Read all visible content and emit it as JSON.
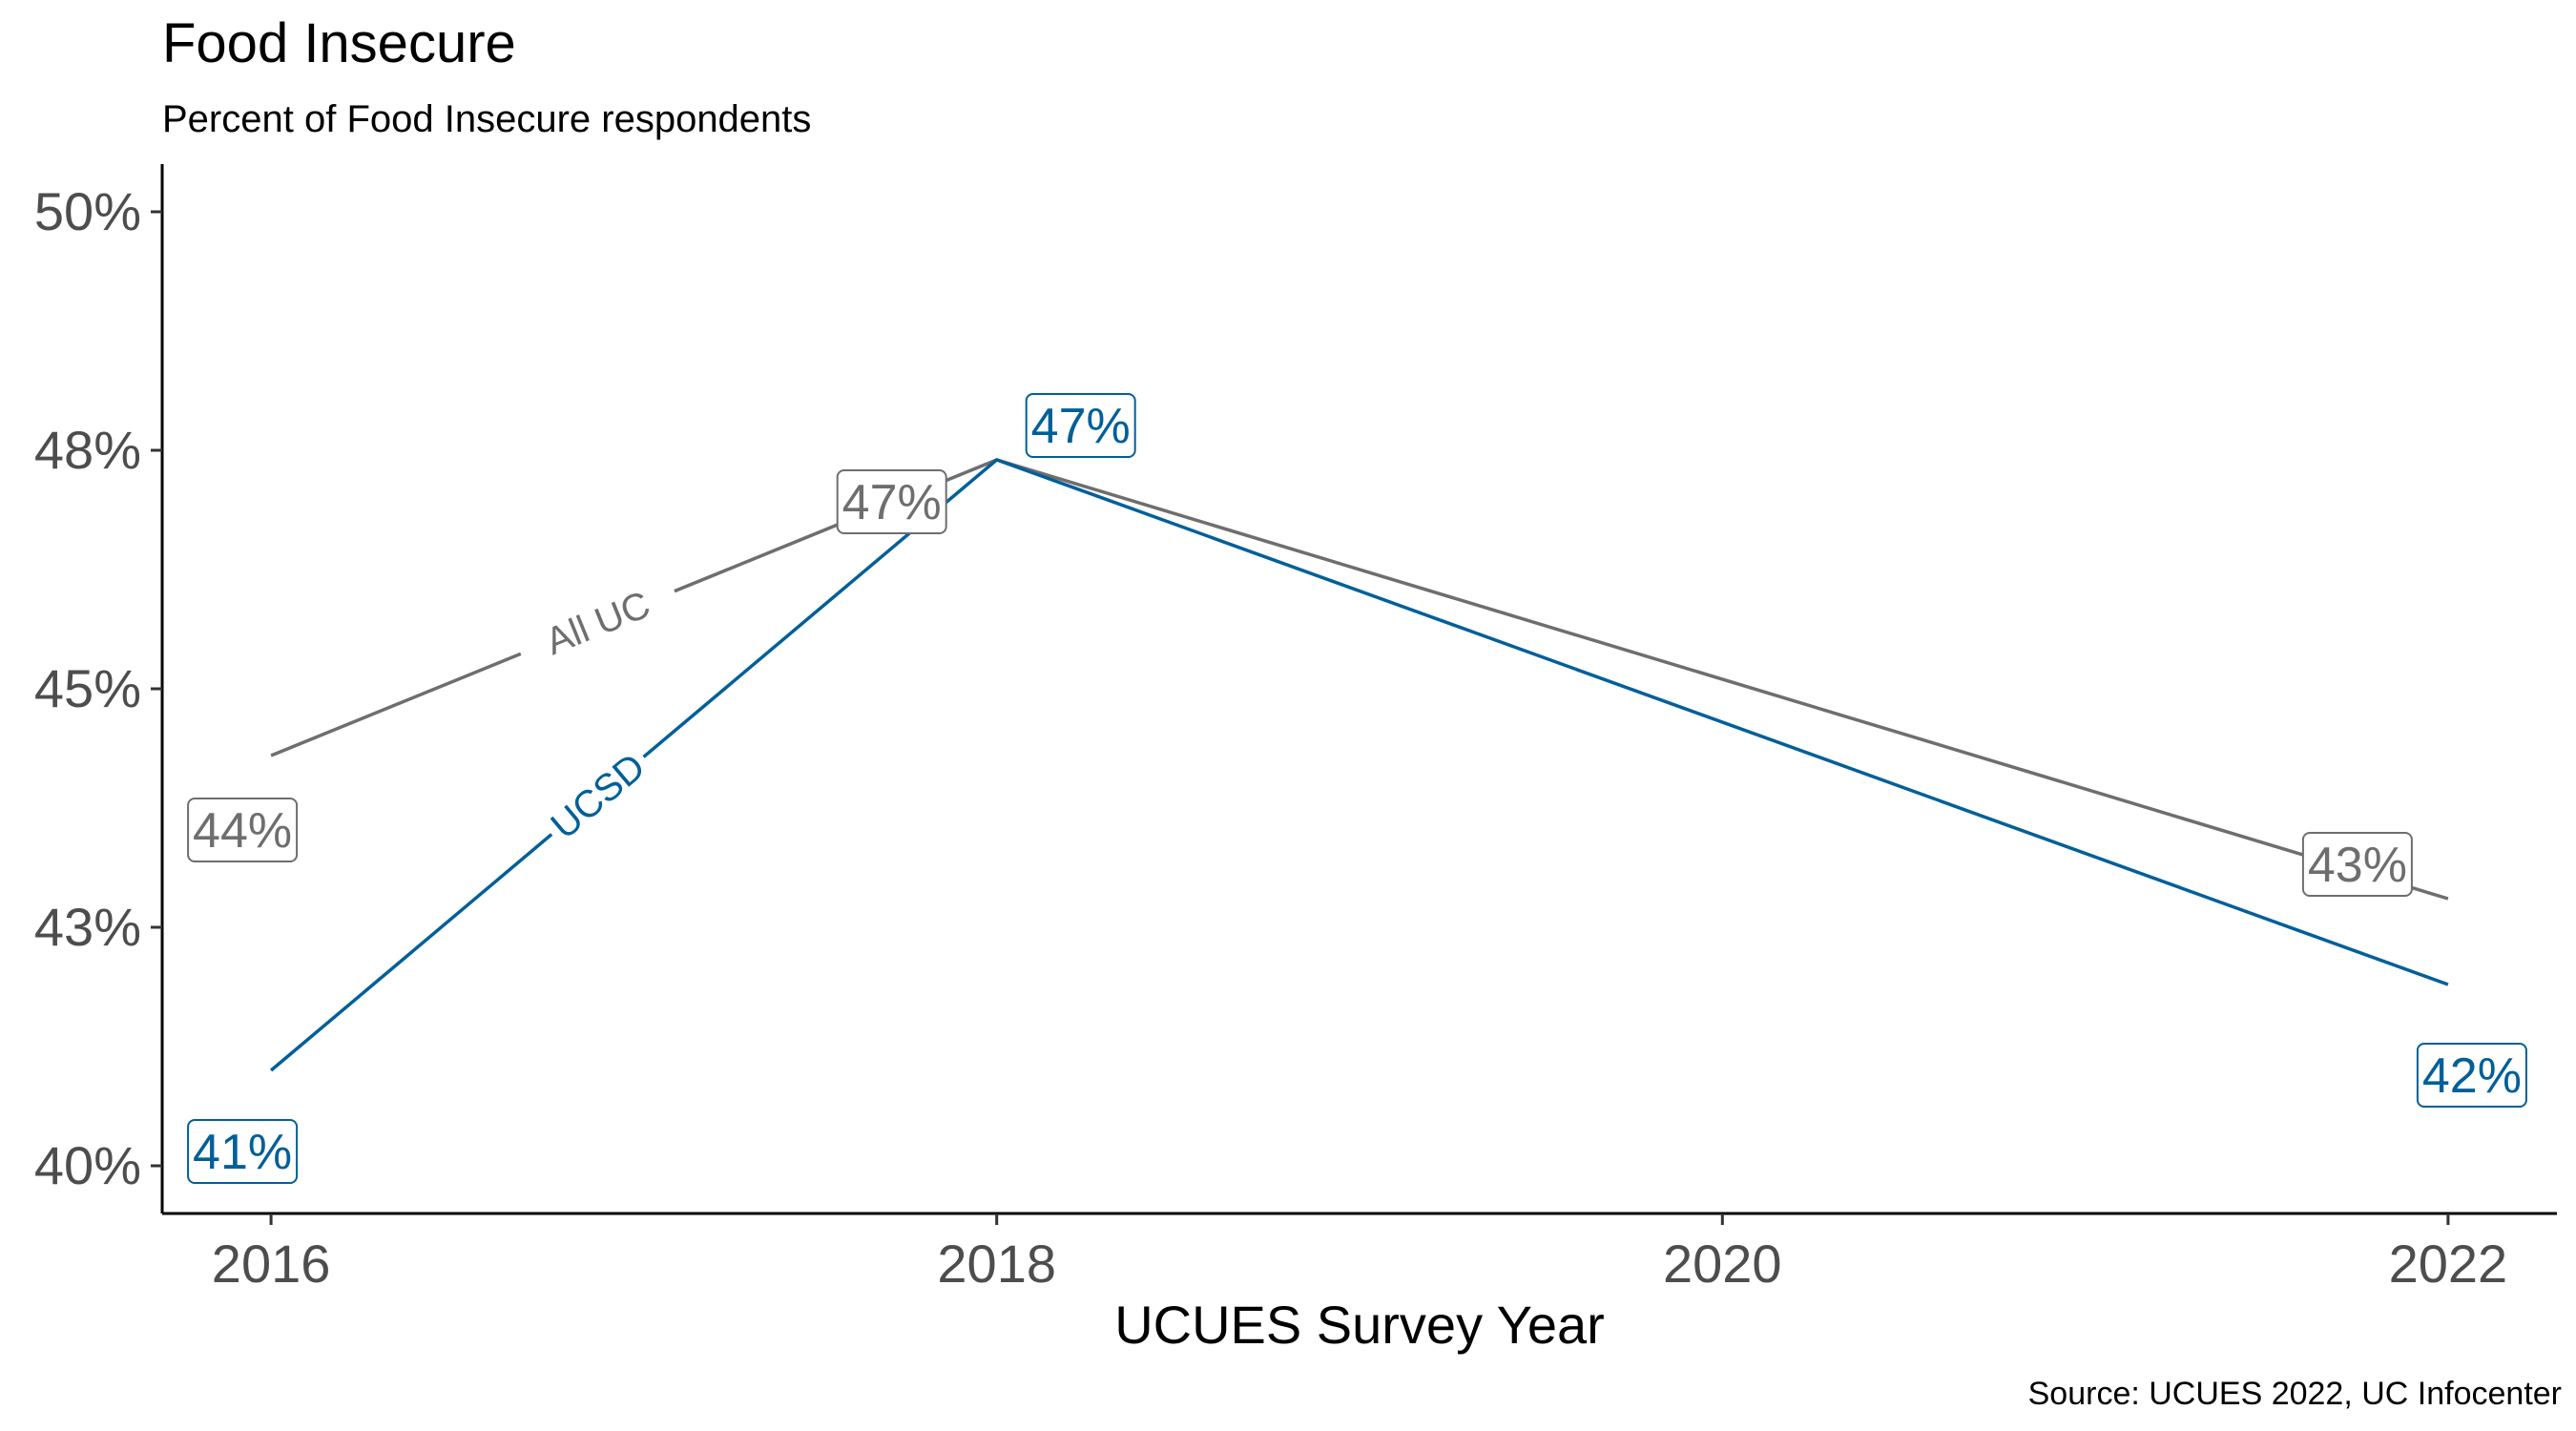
{
  "chart_data": {
    "type": "line",
    "title": "Food Insecure",
    "subtitle": "Percent of Food Insecure respondents",
    "xlabel": "UCUES Survey Year",
    "ylabel": "",
    "caption": "Source: UCUES 2022, UC Infocenter",
    "x": [
      2016,
      2018,
      2020,
      2022
    ],
    "x_tick_labels": [
      "2016",
      "2018",
      "2020",
      "2022"
    ],
    "xlim": [
      2015.7,
      2022.3
    ],
    "ylim": [
      39.5,
      50.5
    ],
    "y_ticks": [
      40,
      42.5,
      45,
      47.5,
      50
    ],
    "y_tick_labels": [
      "40%",
      "43%",
      "45%",
      "48%",
      "50%"
    ],
    "grid": false,
    "series": [
      {
        "name": "All UC",
        "color": "#6e6e6e",
        "x": [
          2016,
          2018,
          2022
        ],
        "values": [
          44.3,
          47.4,
          42.8
        ],
        "point_labels": [
          "44%",
          "47%",
          "43%"
        ]
      },
      {
        "name": "UCSD",
        "color": "#005f99",
        "x": [
          2016,
          2018,
          2022
        ],
        "values": [
          41.0,
          47.4,
          41.9
        ],
        "point_labels": [
          "41%",
          "47%",
          "42%"
        ]
      }
    ]
  }
}
